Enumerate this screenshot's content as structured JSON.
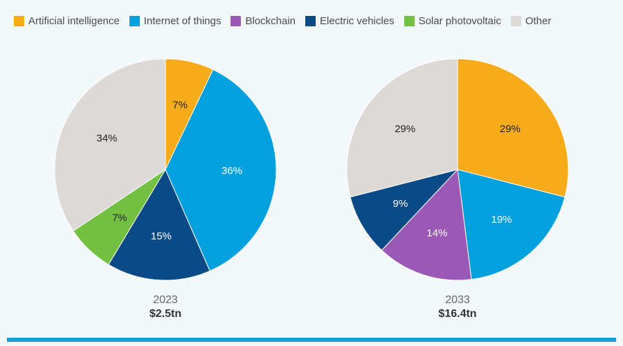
{
  "chart_data": [
    {
      "type": "pie",
      "title": "",
      "caption": "2023",
      "total": "$2.5tn",
      "slices": [
        {
          "label": "Artificial intelligence",
          "value": 7,
          "text": "7%",
          "color": "#f6ab1b",
          "text_color": "#222222"
        },
        {
          "label": "Internet of things",
          "value": 36,
          "text": "36%",
          "color": "#03a0de",
          "text_color": "#ffffff"
        },
        {
          "label": "Electric vehicles",
          "value": 15,
          "text": "15%",
          "color": "#0a4a86",
          "text_color": "#ffffff"
        },
        {
          "label": "Solar photovoltaic",
          "value": 7,
          "text": "7%",
          "color": "#74c043",
          "text_color": "#222222"
        },
        {
          "label": "Other",
          "value": 34,
          "text": "34%",
          "color": "#ddd9d6",
          "text_color": "#222222"
        }
      ]
    },
    {
      "type": "pie",
      "title": "",
      "caption": "2033",
      "total": "$16.4tn",
      "slices": [
        {
          "label": "Artificial intelligence",
          "value": 29,
          "text": "29%",
          "color": "#f6ab1b",
          "text_color": "#222222"
        },
        {
          "label": "Internet of things",
          "value": 19,
          "text": "19%",
          "color": "#03a0de",
          "text_color": "#ffffff"
        },
        {
          "label": "Blockchain",
          "value": 14,
          "text": "14%",
          "color": "#9b59b6",
          "text_color": "#ffffff"
        },
        {
          "label": "Electric vehicles",
          "value": 9,
          "text": "9%",
          "color": "#0a4a86",
          "text_color": "#ffffff"
        },
        {
          "label": "Other",
          "value": 29,
          "text": "29%",
          "color": "#ddd9d6",
          "text_color": "#222222"
        }
      ]
    }
  ],
  "legend": {
    "placement": "top-left",
    "items": [
      {
        "label": "Artificial intelligence",
        "color": "#f6ab1b"
      },
      {
        "label": "Internet of things",
        "color": "#03a0de"
      },
      {
        "label": "Blockchain",
        "color": "#9b59b6"
      },
      {
        "label": "Electric vehicles",
        "color": "#0a4a86"
      },
      {
        "label": "Solar photovoltaic",
        "color": "#74c043"
      },
      {
        "label": "Other",
        "color": "#ddd9d6"
      }
    ]
  },
  "colors": {
    "background": "#f3f8fb",
    "bottom_bar": "#1f9ad6"
  }
}
